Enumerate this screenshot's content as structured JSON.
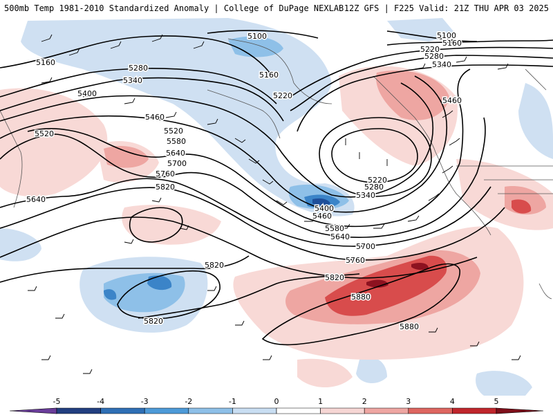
{
  "header": {
    "left": "500mb Temp 1981-2010 Standardized Anomaly | College of DuPage NEXLAB",
    "right": "12Z GFS | F225 Valid: 21Z THU APR 03 2025"
  },
  "contour_labels": [
    {
      "text": "5100"
    },
    {
      "text": "5100"
    },
    {
      "text": "5160"
    },
    {
      "text": "5160"
    },
    {
      "text": "5160"
    },
    {
      "text": "5220"
    },
    {
      "text": "5220"
    },
    {
      "text": "5280"
    },
    {
      "text": "5280"
    },
    {
      "text": "5340"
    },
    {
      "text": "5340"
    },
    {
      "text": "5400"
    },
    {
      "text": "5460"
    },
    {
      "text": "5460"
    },
    {
      "text": "5520"
    },
    {
      "text": "5520"
    },
    {
      "text": "5580"
    },
    {
      "text": "5640"
    },
    {
      "text": "5640"
    },
    {
      "text": "5700"
    },
    {
      "text": "5760"
    },
    {
      "text": "5820"
    },
    {
      "text": "5820"
    },
    {
      "text": "5820"
    },
    {
      "text": "5880"
    },
    {
      "text": "5880"
    },
    {
      "text": "5220"
    },
    {
      "text": "5280"
    },
    {
      "text": "5340"
    },
    {
      "text": "5400"
    },
    {
      "text": "5460"
    },
    {
      "text": "5580"
    },
    {
      "text": "5640"
    },
    {
      "text": "5700"
    },
    {
      "text": "5760"
    },
    {
      "text": "5820"
    }
  ],
  "colorbar": {
    "ticks": [
      "-5",
      "-4",
      "-3",
      "-2",
      "-1",
      "0",
      "1",
      "2",
      "3",
      "4",
      "5"
    ],
    "colors": [
      "#6a3d9a",
      "#223f80",
      "#2f6fb5",
      "#4d9ad8",
      "#8ec0e8",
      "#c9def2",
      "#ffffff",
      "#f6d6d4",
      "#eea6a2",
      "#de6660",
      "#c0262c",
      "#7e0f1a",
      "#f0b800"
    ]
  },
  "shading": {
    "cold_light": "#cfe0f2",
    "cold_mid": "#8ec0e8",
    "cold_strong": "#3b84c8",
    "cold_deep": "#1f4f9a",
    "warm_light": "#f8d9d6",
    "warm_mid": "#eea6a2",
    "warm_strong": "#d84c4c",
    "warm_deep": "#8d1220"
  }
}
